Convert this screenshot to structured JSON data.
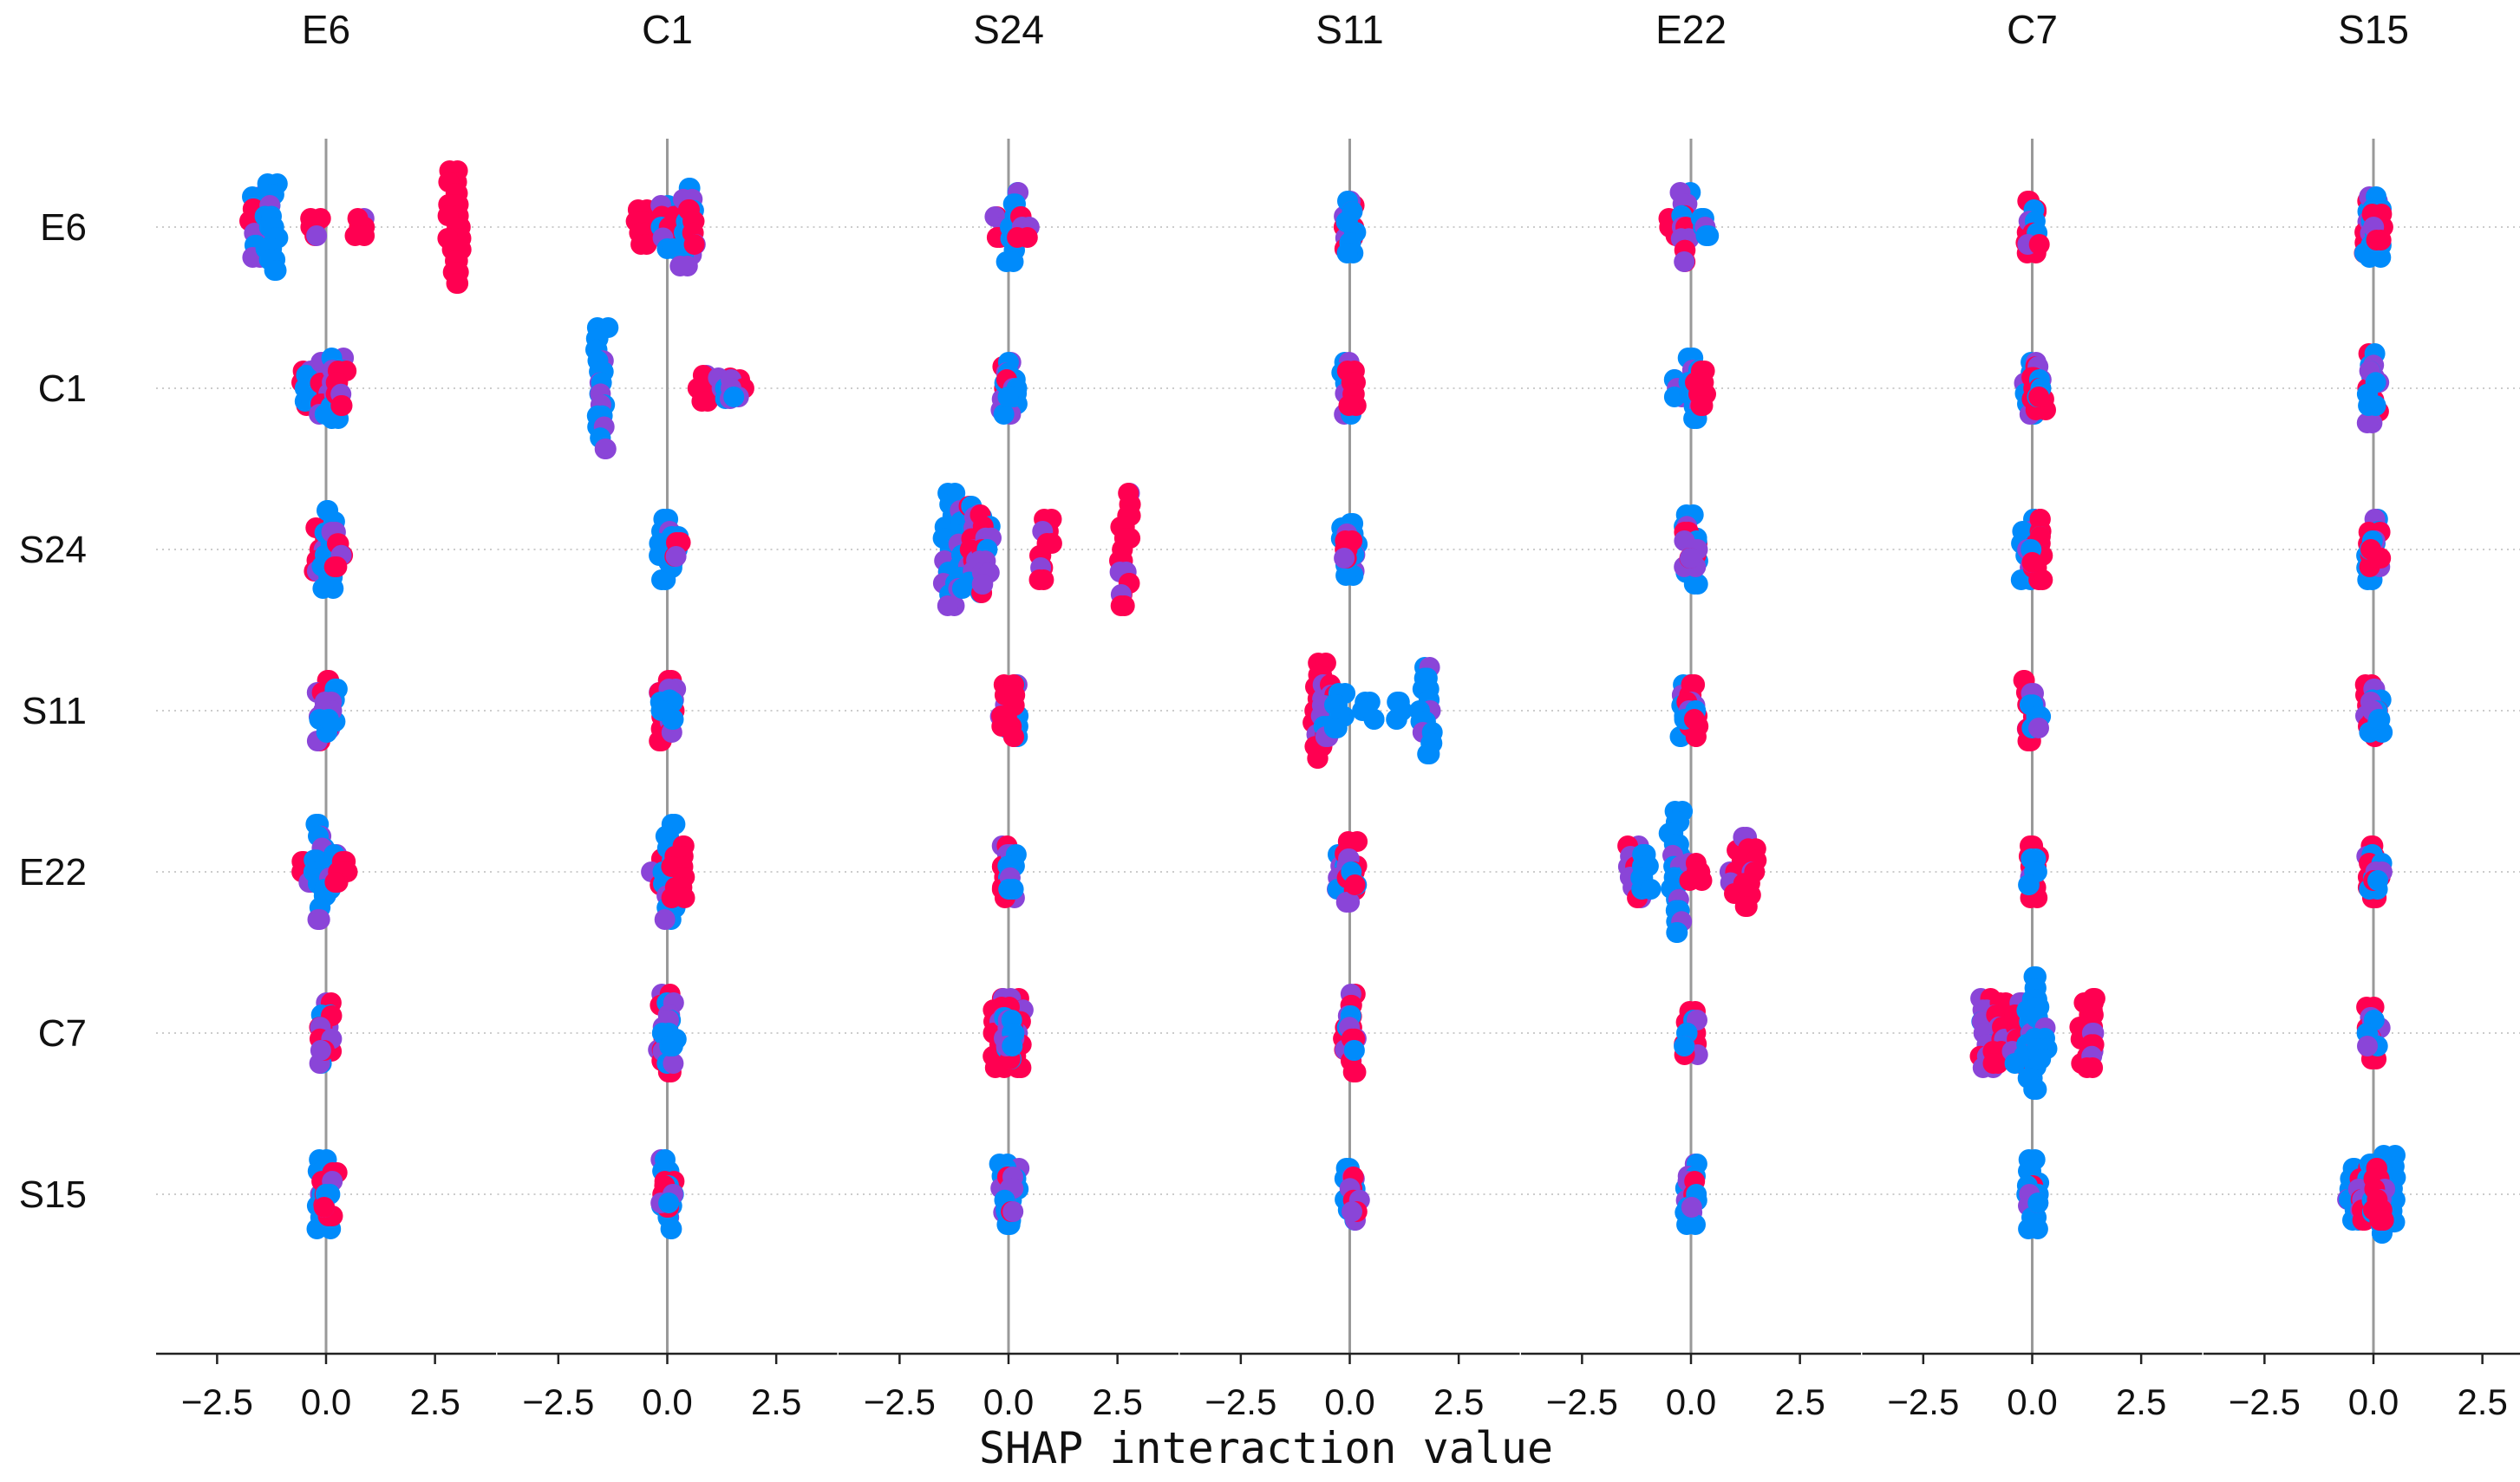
{
  "chart_data": {
    "type": "scatter",
    "subtype": "shap-interaction-summary",
    "features": [
      "E6",
      "C1",
      "S24",
      "S11",
      "E22",
      "C7",
      "S15"
    ],
    "xlabel": "SHAP interaction value",
    "xlim": [
      -3.9,
      3.9
    ],
    "xticks": [
      -2.5,
      0.0,
      2.5
    ],
    "xtick_labels": [
      "−2.5",
      "0.0",
      "2.5"
    ],
    "point_colors": {
      "low": "#008bfb",
      "mid": "#8a45d8",
      "high": "#ff0051"
    },
    "reference_line_color": "#999999",
    "grid_line_color": "#cccccc",
    "cells": [
      [
        {
          "groups": [
            [
              -1.6,
              0.35,
              "mix"
            ],
            [
              -1.25,
              0.5,
              "low"
            ],
            [
              -0.2,
              0.1,
              "high"
            ],
            [
              0.75,
              0.1,
              "high"
            ],
            [
              2.95,
              0.65,
              "high"
            ]
          ]
        },
        {
          "groups": [
            [
              -0.6,
              0.2,
              "high"
            ],
            [
              0.0,
              0.25,
              "mix"
            ],
            [
              0.45,
              0.45,
              "low"
            ],
            [
              0.55,
              0.2,
              "high"
            ]
          ]
        },
        {
          "groups": [
            [
              -0.2,
              0.12,
              "mix"
            ],
            [
              0.1,
              0.4,
              "low"
            ],
            [
              0.35,
              0.12,
              "high"
            ]
          ]
        },
        {
          "groups": [
            [
              -0.05,
              0.25,
              "high"
            ],
            [
              0.05,
              0.3,
              "low"
            ]
          ]
        },
        {
          "groups": [
            [
              -0.4,
              0.1,
              "high"
            ],
            [
              -0.15,
              0.4,
              "mix"
            ],
            [
              0.25,
              0.1,
              "low"
            ]
          ]
        },
        {
          "groups": [
            [
              -0.05,
              0.3,
              "high"
            ],
            [
              0.05,
              0.2,
              "mix"
            ]
          ]
        },
        {
          "groups": [
            [
              -0.05,
              0.3,
              "mix"
            ],
            [
              0.05,
              0.35,
              "low"
            ],
            [
              0.1,
              0.15,
              "high"
            ]
          ]
        }
      ],
      [
        {
          "groups": [
            [
              -0.45,
              0.2,
              "high"
            ],
            [
              -0.35,
              0.15,
              "low"
            ],
            [
              -0.05,
              0.3,
              "mix"
            ],
            [
              0.25,
              0.35,
              "low"
            ],
            [
              0.35,
              0.2,
              "high"
            ]
          ]
        },
        {
          "groups": [
            [
              -1.5,
              0.7,
              "low"
            ],
            [
              0.85,
              0.15,
              "high"
            ],
            [
              1.3,
              0.12,
              "mix"
            ],
            [
              1.6,
              0.1,
              "mix"
            ]
          ]
        },
        {
          "groups": [
            [
              -0.05,
              0.25,
              "high"
            ],
            [
              0.05,
              0.3,
              "low"
            ],
            [
              0.1,
              0.1,
              "mix"
            ]
          ]
        },
        {
          "groups": [
            [
              -0.05,
              0.3,
              "low"
            ],
            [
              0.05,
              0.2,
              "high"
            ]
          ]
        },
        {
          "groups": [
            [
              -0.25,
              0.1,
              "low"
            ],
            [
              0.05,
              0.35,
              "low"
            ],
            [
              0.2,
              0.2,
              "high"
            ]
          ]
        },
        {
          "groups": [
            [
              -0.05,
              0.3,
              "low"
            ],
            [
              0.15,
              0.25,
              "high"
            ],
            [
              0.05,
              0.1,
              "mix"
            ]
          ]
        },
        {
          "groups": [
            [
              0.0,
              0.4,
              "mix"
            ],
            [
              0.0,
              0.2,
              "low"
            ]
          ]
        }
      ],
      [
        {
          "groups": [
            [
              -0.15,
              0.25,
              "high"
            ],
            [
              0.05,
              0.45,
              "low"
            ],
            [
              0.25,
              0.2,
              "high"
            ]
          ]
        },
        {
          "groups": [
            [
              -0.05,
              0.35,
              "low"
            ],
            [
              0.1,
              0.15,
              "low"
            ],
            [
              0.15,
              0.08,
              "high"
            ]
          ]
        },
        {
          "groups": [
            [
              -1.35,
              0.65,
              "low"
            ],
            [
              -1.0,
              0.45,
              "low"
            ],
            [
              -0.75,
              0.5,
              "mix"
            ],
            [
              -0.55,
              0.4,
              "mix"
            ],
            [
              0.85,
              0.35,
              "high"
            ],
            [
              2.7,
              0.65,
              "high"
            ]
          ]
        },
        {
          "groups": [
            [
              -0.05,
              0.25,
              "mix"
            ],
            [
              0.05,
              0.3,
              "low"
            ],
            [
              0.0,
              0.1,
              "high"
            ]
          ]
        },
        {
          "groups": [
            [
              0.0,
              0.4,
              "low"
            ],
            [
              0.0,
              0.2,
              "high"
            ],
            [
              0.0,
              0.1,
              "mix"
            ]
          ]
        },
        {
          "groups": [
            [
              -0.1,
              0.35,
              "low"
            ],
            [
              0.15,
              0.35,
              "high"
            ],
            [
              0.05,
              0.15,
              "mix"
            ]
          ]
        },
        {
          "groups": [
            [
              0.0,
              0.35,
              "low"
            ],
            [
              0.0,
              0.2,
              "high"
            ],
            [
              0.05,
              0.1,
              "mix"
            ]
          ]
        }
      ],
      [
        {
          "groups": [
            [
              -0.05,
              0.35,
              "high"
            ],
            [
              0.1,
              0.25,
              "low"
            ],
            [
              0.0,
              0.1,
              "mix"
            ]
          ]
        },
        {
          "groups": [
            [
              -0.05,
              0.35,
              "high"
            ],
            [
              0.05,
              0.25,
              "mix"
            ],
            [
              0.0,
              0.1,
              "low"
            ]
          ]
        },
        {
          "groups": [
            [
              -0.1,
              0.2,
              "mix"
            ],
            [
              0.1,
              0.3,
              "low"
            ],
            [
              0.0,
              0.3,
              "high"
            ]
          ]
        },
        {
          "groups": [
            [
              -0.7,
              0.55,
              "high"
            ],
            [
              -0.5,
              0.3,
              "mix"
            ],
            [
              -0.25,
              0.2,
              "low"
            ],
            [
              0.45,
              0.1,
              "low"
            ],
            [
              1.2,
              0.1,
              "low"
            ],
            [
              1.75,
              0.5,
              "low"
            ]
          ]
        },
        {
          "groups": [
            [
              -0.1,
              0.3,
              "low"
            ],
            [
              0.1,
              0.3,
              "high"
            ],
            [
              0.0,
              0.1,
              "mix"
            ]
          ]
        },
        {
          "groups": [
            [
              -0.05,
              0.35,
              "high"
            ],
            [
              0.05,
              0.2,
              "low"
            ]
          ]
        },
        {
          "groups": [
            [
              -0.05,
              0.3,
              "high"
            ],
            [
              0.05,
              0.25,
              "mix"
            ],
            [
              0.0,
              0.1,
              "low"
            ]
          ]
        }
      ],
      [
        {
          "groups": [
            [
              -0.4,
              0.12,
              "high"
            ],
            [
              -0.15,
              0.55,
              "low"
            ],
            [
              0.1,
              0.2,
              "low"
            ],
            [
              0.35,
              0.12,
              "high"
            ]
          ]
        },
        {
          "groups": [
            [
              -0.25,
              0.15,
              "high"
            ],
            [
              0.05,
              0.55,
              "low"
            ],
            [
              0.25,
              0.3,
              "high"
            ]
          ]
        },
        {
          "groups": [
            [
              0.0,
              0.3,
              "high"
            ],
            [
              0.0,
              0.2,
              "mix"
            ],
            [
              0.05,
              0.2,
              "low"
            ]
          ]
        },
        {
          "groups": [
            [
              -0.15,
              0.2,
              "low"
            ],
            [
              0.05,
              0.35,
              "high"
            ],
            [
              0.0,
              0.15,
              "mix"
            ]
          ]
        },
        {
          "groups": [
            [
              -1.3,
              0.3,
              "mix"
            ],
            [
              -1.05,
              0.2,
              "low"
            ],
            [
              -0.35,
              0.7,
              "low"
            ],
            [
              0.1,
              0.1,
              "high"
            ],
            [
              1.05,
              0.25,
              "high"
            ],
            [
              1.35,
              0.4,
              "high"
            ]
          ]
        },
        {
          "groups": [
            [
              0.0,
              0.3,
              "high"
            ],
            [
              0.0,
              0.15,
              "low"
            ]
          ]
        },
        {
          "groups": [
            [
              0.0,
              0.3,
              "high"
            ],
            [
              0.0,
              0.2,
              "low"
            ],
            [
              0.05,
              0.1,
              "mix"
            ]
          ]
        }
      ],
      [
        {
          "groups": [
            [
              0.0,
              0.35,
              "mix"
            ],
            [
              0.0,
              0.2,
              "high"
            ]
          ]
        },
        {
          "groups": [
            [
              -0.05,
              0.45,
              "high"
            ],
            [
              0.05,
              0.35,
              "mix"
            ],
            [
              0.0,
              0.15,
              "low"
            ]
          ]
        },
        {
          "groups": [
            [
              -0.2,
              0.4,
              "high"
            ],
            [
              0.2,
              0.4,
              "high"
            ],
            [
              0.0,
              0.3,
              "mix"
            ],
            [
              0.05,
              0.15,
              "low"
            ]
          ]
        },
        {
          "groups": [
            [
              0.0,
              0.45,
              "high"
            ],
            [
              0.0,
              0.2,
              "mix"
            ]
          ]
        },
        {
          "groups": [
            [
              0.0,
              0.25,
              "high"
            ],
            [
              0.0,
              0.15,
              "low"
            ]
          ]
        },
        {
          "groups": [
            [
              -1.05,
              0.4,
              "mix"
            ],
            [
              -0.75,
              0.35,
              "high"
            ],
            [
              -0.35,
              0.35,
              "mix"
            ],
            [
              -0.05,
              0.65,
              "low"
            ],
            [
              0.2,
              0.3,
              "low"
            ],
            [
              1.25,
              0.35,
              "high"
            ],
            [
              1.4,
              0.4,
              "high"
            ]
          ]
        },
        {
          "groups": [
            [
              0.0,
              0.3,
              "high"
            ],
            [
              0.0,
              0.15,
              "low"
            ]
          ]
        }
      ],
      [
        {
          "groups": [
            [
              -0.05,
              0.4,
              "low"
            ],
            [
              0.1,
              0.25,
              "high"
            ],
            [
              0.0,
              0.15,
              "mix"
            ]
          ]
        },
        {
          "groups": [
            [
              0.0,
              0.4,
              "low"
            ],
            [
              0.0,
              0.15,
              "high"
            ],
            [
              0.0,
              0.1,
              "mix"
            ]
          ]
        },
        {
          "groups": [
            [
              -0.05,
              0.35,
              "low"
            ],
            [
              0.1,
              0.3,
              "low"
            ],
            [
              0.0,
              0.2,
              "mix"
            ]
          ]
        },
        {
          "groups": [
            [
              0.0,
              0.3,
              "low"
            ],
            [
              0.1,
              0.2,
              "high"
            ]
          ]
        },
        {
          "groups": [
            [
              0.0,
              0.35,
              "low"
            ],
            [
              0.0,
              0.15,
              "mix"
            ]
          ]
        },
        {
          "groups": [
            [
              0.0,
              0.4,
              "low"
            ],
            [
              0.0,
              0.1,
              "mix"
            ]
          ]
        },
        {
          "groups": [
            [
              -0.5,
              0.3,
              "low"
            ],
            [
              -0.25,
              0.3,
              "mix"
            ],
            [
              0.05,
              0.35,
              "low"
            ],
            [
              0.35,
              0.45,
              "low"
            ],
            [
              0.15,
              0.3,
              "high"
            ]
          ]
        }
      ]
    ]
  }
}
